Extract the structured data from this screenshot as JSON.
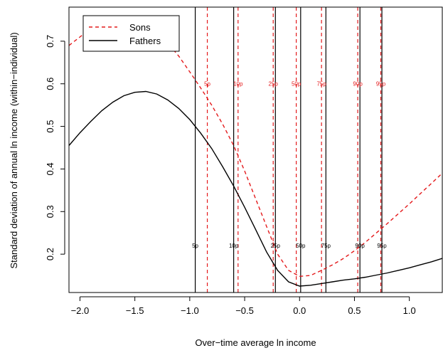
{
  "chart_data": {
    "type": "line",
    "xlabel": "Over−time average ln income",
    "ylabel": "Standard deviation of annual ln income (within−individual)",
    "xlim": [
      -2.1,
      1.3
    ],
    "ylim": [
      0.11,
      0.78
    ],
    "xticks": [
      -2.0,
      -1.5,
      -1.0,
      -0.5,
      0.0,
      0.5,
      1.0
    ],
    "xtick_labels": [
      "−2.0",
      "−1.5",
      "−1.0",
      "−0.5",
      "0.0",
      "0.5",
      "1.0"
    ],
    "yticks": [
      0.2,
      0.3,
      0.4,
      0.5,
      0.6,
      0.7
    ],
    "ytick_labels": [
      "0.2",
      "0.3",
      "0.4",
      "0.5",
      "0.6",
      "0.7"
    ],
    "grid": false,
    "legend_position": "top-left",
    "series": [
      {
        "name": "Sons",
        "color": "#e41a1c",
        "dash": "dashed",
        "x": [
          -2.1,
          -1.95,
          -1.8,
          -1.7,
          -1.6,
          -1.5,
          -1.4,
          -1.3,
          -1.2,
          -1.1,
          -1.0,
          -0.9,
          -0.8,
          -0.7,
          -0.6,
          -0.5,
          -0.4,
          -0.3,
          -0.2,
          -0.1,
          0.0,
          0.1,
          0.2,
          0.3,
          0.4,
          0.5,
          0.6,
          0.7,
          0.8,
          0.9,
          1.0,
          1.1,
          1.2,
          1.3
        ],
        "y": [
          0.69,
          0.72,
          0.742,
          0.749,
          0.75,
          0.745,
          0.735,
          0.718,
          0.695,
          0.665,
          0.628,
          0.59,
          0.55,
          0.505,
          0.455,
          0.395,
          0.33,
          0.265,
          0.2,
          0.162,
          0.148,
          0.15,
          0.162,
          0.175,
          0.19,
          0.208,
          0.228,
          0.25,
          0.272,
          0.295,
          0.318,
          0.342,
          0.366,
          0.39
        ]
      },
      {
        "name": "Fathers",
        "color": "#000000",
        "dash": "solid",
        "x": [
          -2.1,
          -2.0,
          -1.9,
          -1.8,
          -1.7,
          -1.6,
          -1.5,
          -1.4,
          -1.3,
          -1.2,
          -1.1,
          -1.0,
          -0.9,
          -0.8,
          -0.7,
          -0.6,
          -0.5,
          -0.4,
          -0.3,
          -0.2,
          -0.1,
          0.0,
          0.1,
          0.2,
          0.3,
          0.4,
          0.5,
          0.6,
          0.7,
          0.8,
          0.9,
          1.0,
          1.1,
          1.2,
          1.3
        ],
        "y": [
          0.455,
          0.485,
          0.512,
          0.537,
          0.557,
          0.572,
          0.58,
          0.582,
          0.576,
          0.562,
          0.542,
          0.516,
          0.484,
          0.448,
          0.405,
          0.36,
          0.31,
          0.258,
          0.205,
          0.162,
          0.135,
          0.125,
          0.127,
          0.131,
          0.135,
          0.139,
          0.142,
          0.146,
          0.151,
          0.156,
          0.162,
          0.168,
          0.175,
          0.182,
          0.19
        ]
      }
    ],
    "percentile_lines": {
      "fathers": {
        "color": "#000000",
        "label_y": 0.22,
        "lines": [
          {
            "label": "5p",
            "x": -0.95
          },
          {
            "label": "10p",
            "x": -0.6
          },
          {
            "label": "25p",
            "x": -0.22
          },
          {
            "label": "50p",
            "x": 0.01
          },
          {
            "label": "75p",
            "x": 0.24
          },
          {
            "label": "90p",
            "x": 0.55
          },
          {
            "label": "95p",
            "x": 0.75
          }
        ]
      },
      "sons": {
        "color": "#e41a1c",
        "label_y": 0.6,
        "lines": [
          {
            "label": "5p",
            "x": -0.84
          },
          {
            "label": "10p",
            "x": -0.56
          },
          {
            "label": "25p",
            "x": -0.24
          },
          {
            "label": "50p",
            "x": -0.03
          },
          {
            "label": "75p",
            "x": 0.2
          },
          {
            "label": "90p",
            "x": 0.53
          },
          {
            "label": "95p",
            "x": 0.74
          }
        ]
      }
    }
  }
}
